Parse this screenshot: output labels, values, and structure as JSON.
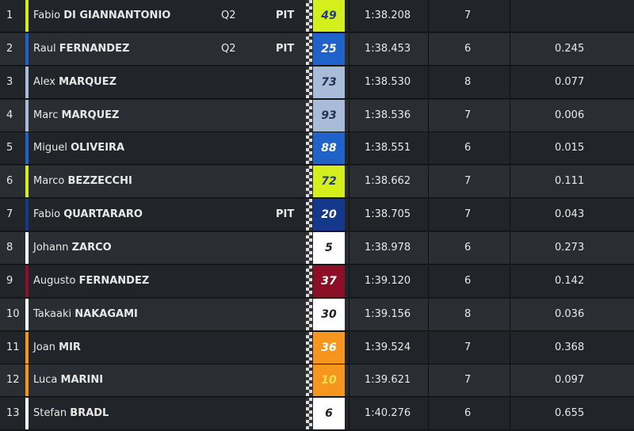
{
  "rows": [
    {
      "pos": "1",
      "first": "Fabio",
      "last": "DI GIANNANTONIO",
      "q": "Q2",
      "pit": "PIT",
      "number": "49",
      "time": "1:38.208",
      "laps": "7",
      "color": "#d4ef1c",
      "numcolor": "#1d3f8f"
    },
    {
      "pos": "2",
      "first": "Raul",
      "last": "FERNANDEZ",
      "q": "Q2",
      "pit": "PIT",
      "number": "25",
      "time": "1:38.453",
      "laps": "6",
      "gap": "0.245",
      "color": "#1f62c9",
      "numcolor": "#ffffff"
    },
    {
      "pos": "3",
      "first": "Alex",
      "last": "MARQUEZ",
      "number": "73",
      "time": "1:38.530",
      "laps": "8",
      "gap": "0.077",
      "color": "#a8bbd9",
      "numcolor": "#24324f"
    },
    {
      "pos": "4",
      "first": "Marc",
      "last": "MARQUEZ",
      "number": "93",
      "time": "1:38.536",
      "laps": "7",
      "gap": "0.006",
      "color": "#a8bbd9",
      "numcolor": "#24324f"
    },
    {
      "pos": "5",
      "first": "Miguel",
      "last": "OLIVEIRA",
      "number": "88",
      "time": "1:38.551",
      "laps": "6",
      "gap": "0.015",
      "color": "#1f62c9",
      "numcolor": "#ffffff"
    },
    {
      "pos": "6",
      "first": "Marco",
      "last": "BEZZECCHI",
      "number": "72",
      "time": "1:38.662",
      "laps": "7",
      "gap": "0.111",
      "color": "#d4ef1c",
      "numcolor": "#1d3f8f"
    },
    {
      "pos": "7",
      "first": "Fabio",
      "last": "QUARTARARO",
      "pit": "PIT",
      "number": "20",
      "time": "1:38.705",
      "laps": "7",
      "gap": "0.043",
      "color": "#14398c",
      "numcolor": "#ffffff"
    },
    {
      "pos": "8",
      "first": "Johann",
      "last": "ZARCO",
      "number": "5",
      "time": "1:38.978",
      "laps": "6",
      "gap": "0.273",
      "color": "#ffffff",
      "numcolor": "#222222"
    },
    {
      "pos": "9",
      "first": "Augusto",
      "last": "FERNANDEZ",
      "number": "37",
      "time": "1:39.120",
      "laps": "6",
      "gap": "0.142",
      "color": "#8d0e27",
      "numcolor": "#ffffff"
    },
    {
      "pos": "10",
      "first": "Takaaki",
      "last": "NAKAGAMI",
      "number": "30",
      "time": "1:39.156",
      "laps": "8",
      "gap": "0.036",
      "color": "#ffffff",
      "numcolor": "#222222"
    },
    {
      "pos": "11",
      "first": "Joan",
      "last": "MIR",
      "number": "36",
      "time": "1:39.524",
      "laps": "7",
      "gap": "0.368",
      "color": "#f7961e",
      "numcolor": "#ffffff"
    },
    {
      "pos": "12",
      "first": "Luca",
      "last": "MARINI",
      "number": "10",
      "time": "1:39.621",
      "laps": "7",
      "gap": "0.097",
      "color": "#f7961e",
      "numcolor": "#ffe14a"
    },
    {
      "pos": "13",
      "first": "Stefan",
      "last": "BRADL",
      "number": "6",
      "time": "1:40.276",
      "laps": "6",
      "gap": "0.655",
      "color": "#ffffff",
      "numcolor": "#222222"
    }
  ]
}
